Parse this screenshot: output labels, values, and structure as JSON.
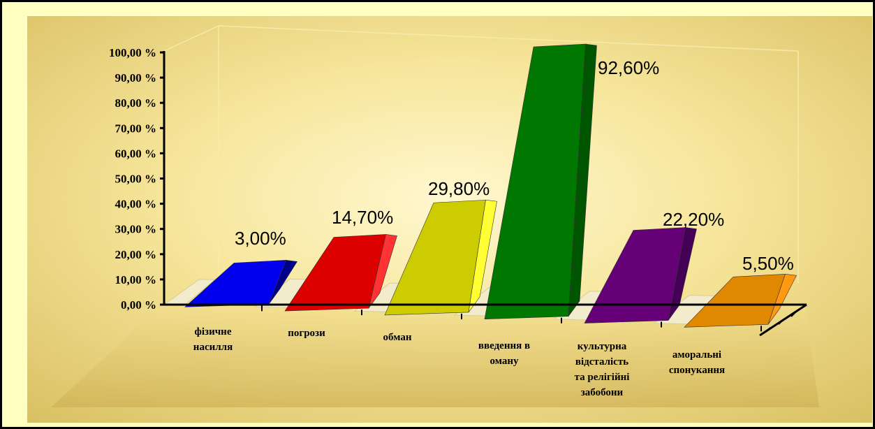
{
  "chart_data": {
    "type": "bar",
    "categories": [
      [
        "фізичне",
        "насилля"
      ],
      [
        "погрози"
      ],
      [
        "обман"
      ],
      [
        "введення в",
        "оману"
      ],
      [
        "культурна",
        "відсталість",
        "та релігійні",
        "забобони"
      ],
      [
        "аморальні",
        "спонукання"
      ]
    ],
    "values": [
      3.0,
      14.7,
      29.8,
      92.6,
      22.2,
      5.5
    ],
    "data_labels": [
      "3,00%",
      "14,70%",
      "29,80%",
      "92,60%",
      "22,20%",
      "5,50%"
    ],
    "ylim": [
      0,
      100
    ],
    "yticks": [
      {
        "value": 0,
        "label": "0,00 %"
      },
      {
        "value": 10,
        "label": "10,00 %"
      },
      {
        "value": 20,
        "label": "20,00 %"
      },
      {
        "value": 30,
        "label": "30,00 %"
      },
      {
        "value": 40,
        "label": "40,00 %"
      },
      {
        "value": 50,
        "label": "50,00 %"
      },
      {
        "value": 60,
        "label": "60,00 %"
      },
      {
        "value": 70,
        "label": "70,00 %"
      },
      {
        "value": 80,
        "label": "80,00 %"
      },
      {
        "value": 90,
        "label": "90,00 %"
      },
      {
        "value": 100,
        "label": "100,00 %"
      }
    ],
    "colors": [
      "#0000ee",
      "#dd0000",
      "#cccc00",
      "#007700",
      "#660077",
      "#e08800"
    ],
    "side_colors": [
      "#000088",
      "#ff3333",
      "#ffff33",
      "#005500",
      "#440055",
      "#ff9911"
    ],
    "title": "",
    "xlabel": "",
    "ylabel": "",
    "grid": false,
    "legend": "none",
    "view": "3d"
  }
}
